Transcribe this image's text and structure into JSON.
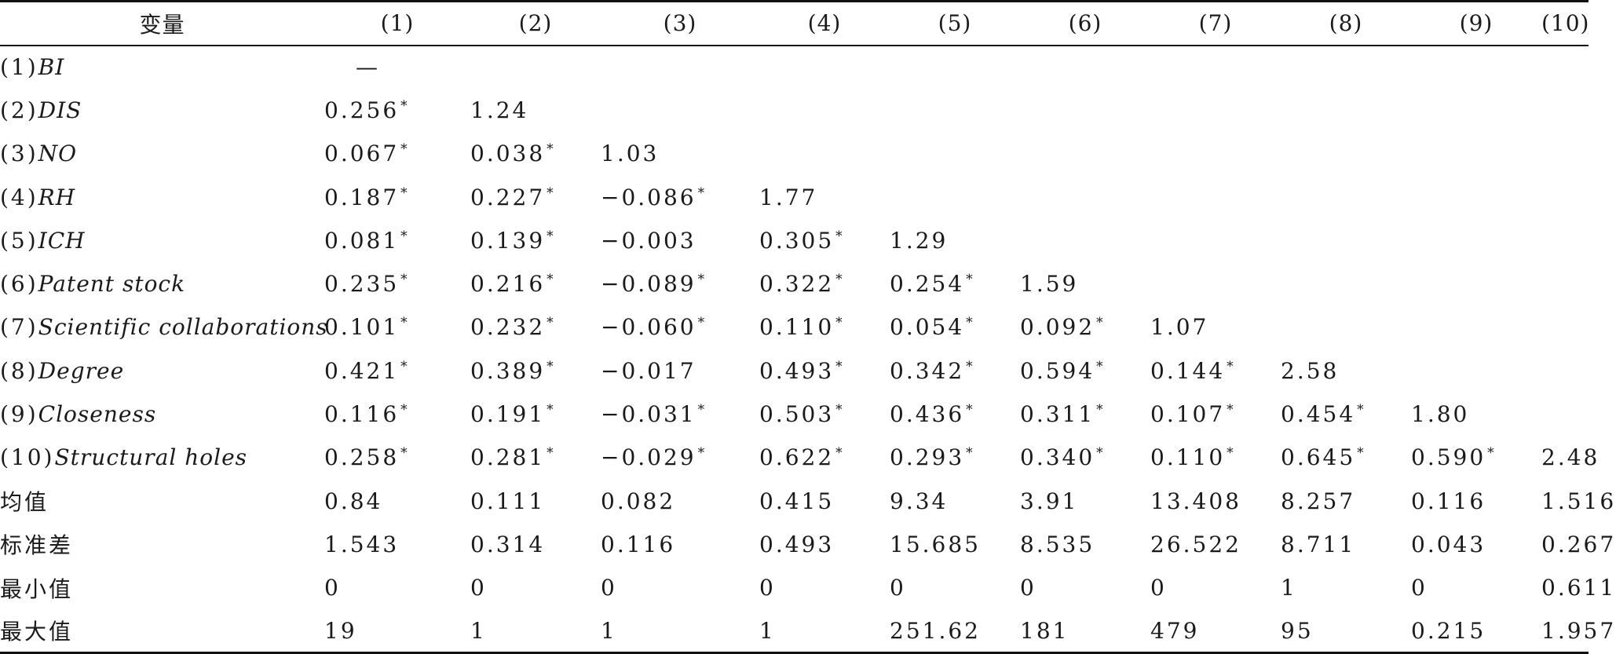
{
  "table": {
    "headers": [
      "变量",
      "(1)",
      "(2)",
      "(3)",
      "(4)",
      "(5)",
      "(6)",
      "(7)",
      "(8)",
      "(9)",
      "(10)"
    ],
    "rows": [
      {
        "num": "(1)",
        "var": "BI",
        "cells": [
          {
            "v": "—",
            "s": false
          },
          null,
          null,
          null,
          null,
          null,
          null,
          null,
          null,
          null
        ]
      },
      {
        "num": "(2)",
        "var": "DIS",
        "cells": [
          {
            "v": "0.256",
            "s": true
          },
          {
            "v": "1.24",
            "s": false
          },
          null,
          null,
          null,
          null,
          null,
          null,
          null,
          null
        ]
      },
      {
        "num": "(3)",
        "var": "NO",
        "cells": [
          {
            "v": "0.067",
            "s": true
          },
          {
            "v": "0.038",
            "s": true
          },
          {
            "v": "1.03",
            "s": false
          },
          null,
          null,
          null,
          null,
          null,
          null,
          null
        ]
      },
      {
        "num": "(4)",
        "var": "RH",
        "cells": [
          {
            "v": "0.187",
            "s": true
          },
          {
            "v": "0.227",
            "s": true
          },
          {
            "v": "−0.086",
            "s": true
          },
          {
            "v": "1.77",
            "s": false
          },
          null,
          null,
          null,
          null,
          null,
          null
        ]
      },
      {
        "num": "(5)",
        "var": "ICH",
        "cells": [
          {
            "v": "0.081",
            "s": true
          },
          {
            "v": "0.139",
            "s": true
          },
          {
            "v": "−0.003",
            "s": false
          },
          {
            "v": "0.305",
            "s": true
          },
          {
            "v": "1.29",
            "s": false
          },
          null,
          null,
          null,
          null,
          null
        ]
      },
      {
        "num": "(6)",
        "var": "Patent stock",
        "cells": [
          {
            "v": "0.235",
            "s": true
          },
          {
            "v": "0.216",
            "s": true
          },
          {
            "v": "−0.089",
            "s": true
          },
          {
            "v": "0.322",
            "s": true
          },
          {
            "v": "0.254",
            "s": true
          },
          {
            "v": "1.59",
            "s": false
          },
          null,
          null,
          null,
          null
        ]
      },
      {
        "num": "(7)",
        "var": "Scientific collaborations",
        "cells": [
          {
            "v": "0.101",
            "s": true
          },
          {
            "v": "0.232",
            "s": true
          },
          {
            "v": "−0.060",
            "s": true
          },
          {
            "v": "0.110",
            "s": true
          },
          {
            "v": "0.054",
            "s": true
          },
          {
            "v": "0.092",
            "s": true
          },
          {
            "v": "1.07",
            "s": false
          },
          null,
          null,
          null
        ]
      },
      {
        "num": "(8)",
        "var": "Degree",
        "cells": [
          {
            "v": "0.421",
            "s": true
          },
          {
            "v": "0.389",
            "s": true
          },
          {
            "v": "−0.017",
            "s": false
          },
          {
            "v": "0.493",
            "s": true
          },
          {
            "v": "0.342",
            "s": true
          },
          {
            "v": "0.594",
            "s": true
          },
          {
            "v": "0.144",
            "s": true
          },
          {
            "v": "2.58",
            "s": false
          },
          null,
          null
        ]
      },
      {
        "num": "(9)",
        "var": "Closeness",
        "cells": [
          {
            "v": "0.116",
            "s": true
          },
          {
            "v": "0.191",
            "s": true
          },
          {
            "v": "−0.031",
            "s": true
          },
          {
            "v": "0.503",
            "s": true
          },
          {
            "v": "0.436",
            "s": true
          },
          {
            "v": "0.311",
            "s": true
          },
          {
            "v": "0.107",
            "s": true
          },
          {
            "v": "0.454",
            "s": true
          },
          {
            "v": "1.80",
            "s": false
          },
          null
        ]
      },
      {
        "num": "(10)",
        "var": "Structural holes",
        "cells": [
          {
            "v": "0.258",
            "s": true
          },
          {
            "v": "0.281",
            "s": true
          },
          {
            "v": "−0.029",
            "s": true
          },
          {
            "v": "0.622",
            "s": true
          },
          {
            "v": "0.293",
            "s": true
          },
          {
            "v": "0.340",
            "s": true
          },
          {
            "v": "0.110",
            "s": true
          },
          {
            "v": "0.645",
            "s": true
          },
          {
            "v": "0.590",
            "s": true
          },
          {
            "v": "2.48",
            "s": false
          }
        ]
      }
    ],
    "stats": [
      {
        "label": "均值",
        "values": [
          "0.84",
          "0.111",
          "0.082",
          "0.415",
          "9.34",
          "3.91",
          "13.408",
          "8.257",
          "0.116",
          "1.516"
        ]
      },
      {
        "label": "标准差",
        "values": [
          "1.543",
          "0.314",
          "0.116",
          "0.493",
          "15.685",
          "8.535",
          "26.522",
          "8.711",
          "0.043",
          "0.267"
        ]
      },
      {
        "label": "最小值",
        "values": [
          "0",
          "0",
          "0",
          "0",
          "0",
          "0",
          "0",
          "1",
          "0",
          "0.611"
        ]
      },
      {
        "label": "最大值",
        "values": [
          "19",
          "1",
          "1",
          "1",
          "251.62",
          "181",
          "479",
          "95",
          "0.215",
          "1.957"
        ]
      }
    ],
    "star": "*"
  }
}
